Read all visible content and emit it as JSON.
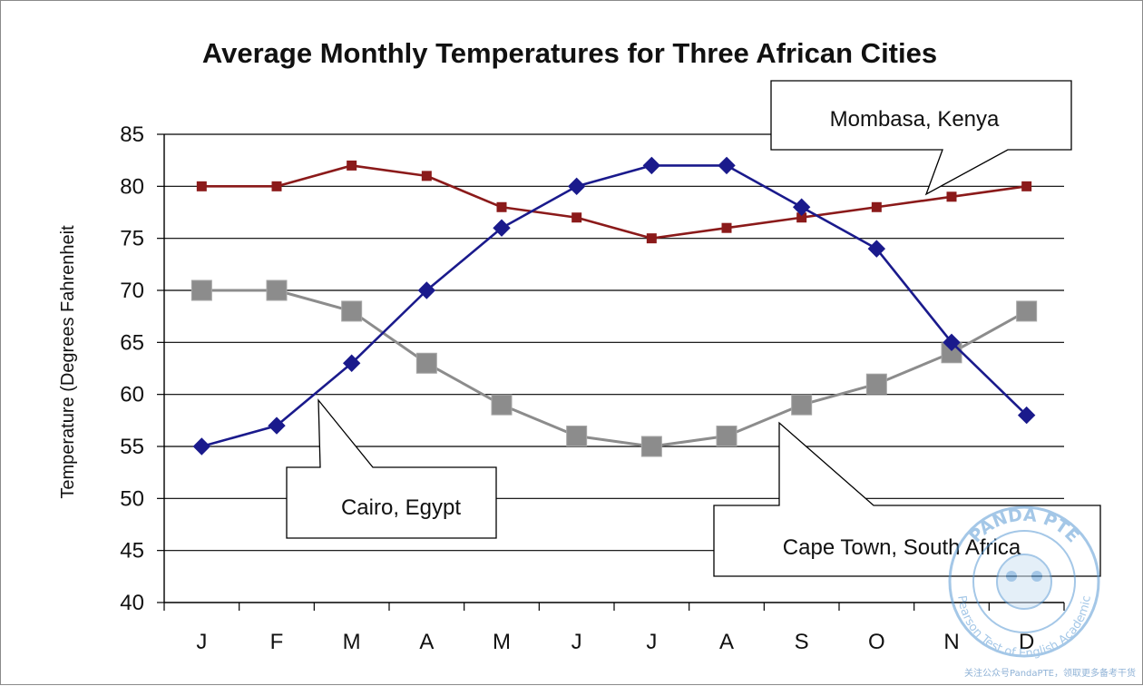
{
  "chart_data": {
    "type": "line",
    "title": "Average Monthly Temperatures for Three African Cities",
    "xlabel": "",
    "ylabel": "Temperature (Degrees Fahrenheit",
    "categories": [
      "J",
      "F",
      "M",
      "A",
      "M",
      "J",
      "J",
      "A",
      "S",
      "O",
      "N",
      "D"
    ],
    "ylim": [
      40,
      85
    ],
    "yticks": [
      40,
      45,
      50,
      55,
      60,
      65,
      70,
      75,
      80,
      85
    ],
    "grid": "horizontal",
    "legend": "none",
    "series": [
      {
        "name": "Mombasa, Kenya",
        "color": "#8b1a1a",
        "marker": "square-small",
        "values": [
          80,
          80,
          82,
          81,
          78,
          77,
          75,
          76,
          77,
          78,
          79,
          80
        ]
      },
      {
        "name": "Cairo, Egypt",
        "color": "#1a1a8c",
        "marker": "diamond",
        "values": [
          55,
          57,
          63,
          70,
          76,
          80,
          82,
          82,
          78,
          74,
          65,
          58
        ]
      },
      {
        "name": "Cape Town, South Africa",
        "color": "#8c8c8c",
        "marker": "square-large",
        "values": [
          70,
          70,
          68,
          63,
          59,
          56,
          55,
          56,
          59,
          61,
          64,
          68
        ]
      }
    ],
    "annotations": [
      "Mombasa, Kenya",
      "Cairo, Egypt",
      "Cape Town, South Africa"
    ]
  },
  "watermark": {
    "brand": "PANDA PTE",
    "tagline": "Pearson Test of English Academic",
    "footer": "关注公众号PandaPTE，领取更多备考干货",
    "color": "#5b9bd5"
  }
}
